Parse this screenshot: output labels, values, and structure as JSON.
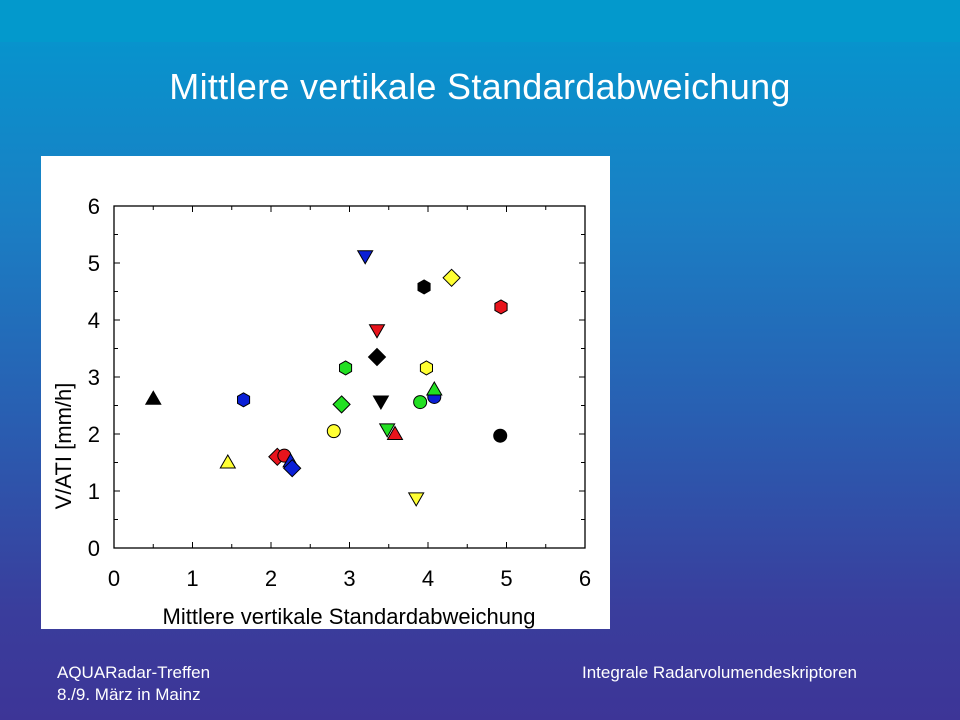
{
  "slide": {
    "title": "Mittlere vertikale Standardabweichung",
    "footer_left_line1": "AQUARadar-Treffen",
    "footer_left_line2": "8./9. März in Mainz",
    "footer_right": "Integrale Radarvolumendeskriptoren"
  },
  "chart_data": {
    "type": "scatter",
    "title": "",
    "xlabel": "Mittlere vertikale Standardabweichung",
    "ylabel": "V/ATI [mm/h]",
    "xlim": [
      0,
      6
    ],
    "ylim": [
      0,
      6
    ],
    "xticks": [
      "0",
      "1",
      "2",
      "3",
      "4",
      "5",
      "6"
    ],
    "yticks": [
      "0",
      "1",
      "2",
      "3",
      "4",
      "5",
      "6"
    ],
    "grid": false,
    "legend": "none",
    "colors": {
      "black": "#000000",
      "blue": "#0a1fd6",
      "red": "#e8141c",
      "green": "#22e022",
      "yellow": "#ffff33"
    },
    "points": [
      {
        "x": 0.5,
        "y": 2.62,
        "marker": "triangle-up",
        "color": "black"
      },
      {
        "x": 1.45,
        "y": 1.5,
        "marker": "triangle-up",
        "color": "yellow"
      },
      {
        "x": 1.65,
        "y": 2.6,
        "marker": "hexagon",
        "color": "blue"
      },
      {
        "x": 2.08,
        "y": 1.6,
        "marker": "diamond",
        "color": "red"
      },
      {
        "x": 2.17,
        "y": 1.62,
        "marker": "circle",
        "color": "red"
      },
      {
        "x": 2.25,
        "y": 1.52,
        "marker": "triangle-up",
        "color": "blue"
      },
      {
        "x": 2.27,
        "y": 1.4,
        "marker": "diamond",
        "color": "blue"
      },
      {
        "x": 2.8,
        "y": 2.05,
        "marker": "circle",
        "color": "yellow"
      },
      {
        "x": 2.9,
        "y": 2.52,
        "marker": "diamond",
        "color": "green"
      },
      {
        "x": 2.95,
        "y": 3.16,
        "marker": "hexagon",
        "color": "green"
      },
      {
        "x": 3.2,
        "y": 5.12,
        "marker": "triangle-down",
        "color": "blue"
      },
      {
        "x": 3.35,
        "y": 3.35,
        "marker": "diamond",
        "color": "black"
      },
      {
        "x": 3.35,
        "y": 3.82,
        "marker": "triangle-down",
        "color": "red"
      },
      {
        "x": 3.4,
        "y": 2.57,
        "marker": "triangle-down",
        "color": "black"
      },
      {
        "x": 3.48,
        "y": 2.08,
        "marker": "triangle-down",
        "color": "green"
      },
      {
        "x": 3.58,
        "y": 2.0,
        "marker": "triangle-up",
        "color": "red"
      },
      {
        "x": 3.85,
        "y": 0.87,
        "marker": "triangle-down",
        "color": "yellow"
      },
      {
        "x": 3.9,
        "y": 2.56,
        "marker": "circle",
        "color": "green"
      },
      {
        "x": 3.95,
        "y": 4.58,
        "marker": "hexagon",
        "color": "black"
      },
      {
        "x": 3.98,
        "y": 3.16,
        "marker": "hexagon",
        "color": "yellow"
      },
      {
        "x": 4.08,
        "y": 2.65,
        "marker": "circle",
        "color": "blue"
      },
      {
        "x": 4.08,
        "y": 2.78,
        "marker": "triangle-up",
        "color": "green"
      },
      {
        "x": 4.3,
        "y": 4.74,
        "marker": "diamond",
        "color": "yellow"
      },
      {
        "x": 4.92,
        "y": 1.97,
        "marker": "circle",
        "color": "black"
      },
      {
        "x": 4.93,
        "y": 4.23,
        "marker": "hexagon",
        "color": "red"
      }
    ]
  }
}
